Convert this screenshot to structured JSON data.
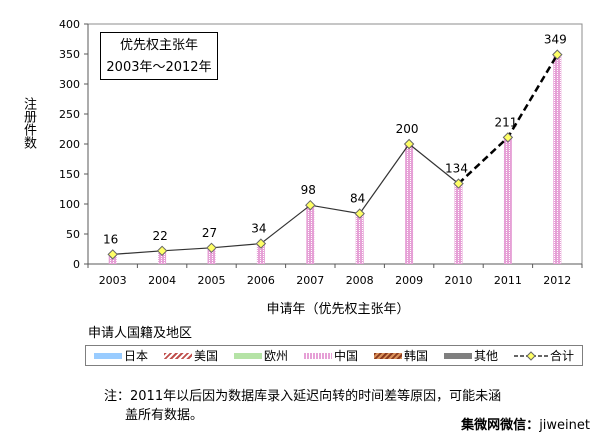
{
  "chart_data": {
    "type": "bar",
    "xlabel": "申请年（优先权主张年）",
    "ylabel": "注册件数",
    "categories": [
      "2003",
      "2004",
      "2005",
      "2006",
      "2007",
      "2008",
      "2009",
      "2010",
      "2011",
      "2012"
    ],
    "ylim": [
      0,
      400
    ],
    "yticks": [
      0,
      50,
      100,
      150,
      200,
      250,
      300,
      350,
      400
    ],
    "grid": false,
    "inset_box": {
      "line1": "优先权主张年",
      "line2": "2003年～2012年",
      "position": "top-left"
    },
    "series": [
      {
        "name": "中国",
        "type": "bar",
        "color": "#e6a0d6",
        "values": [
          16,
          22,
          27,
          34,
          98,
          84,
          200,
          134,
          211,
          349
        ]
      },
      {
        "name": "合计",
        "type": "line",
        "color": "#333333",
        "marker": "diamond",
        "marker_color": "#ffff66",
        "dashed_from": "2010",
        "values": [
          16,
          22,
          27,
          34,
          98,
          84,
          200,
          134,
          211,
          349
        ]
      }
    ],
    "legend": {
      "title": "申请人国籍及地区",
      "position": "bottom",
      "items": [
        {
          "name": "日本",
          "color": "#99ccff",
          "pattern": "solid"
        },
        {
          "name": "美国",
          "color": "#c0504d",
          "pattern": "hatch"
        },
        {
          "name": "欧州",
          "color": "#b5e3a6",
          "pattern": "solid"
        },
        {
          "name": "中国",
          "color": "#e6a0d6",
          "pattern": "dots"
        },
        {
          "name": "韩国",
          "color": "#8b3a1e",
          "color2": "#d9915a",
          "pattern": "hatch"
        },
        {
          "name": "其他",
          "color": "#7f7f7f",
          "pattern": "solid"
        },
        {
          "name": "合计",
          "color": "#333333",
          "marker_color": "#ffff66",
          "pattern": "line-diamond"
        }
      ]
    }
  },
  "note_lines": [
    "注：2011年以后因为数据库录入延迟向转的时间差等原因，可能未涵",
    "盖所有数据。"
  ],
  "credit_label": "集微网微信：",
  "credit_handle": "jiweinet"
}
